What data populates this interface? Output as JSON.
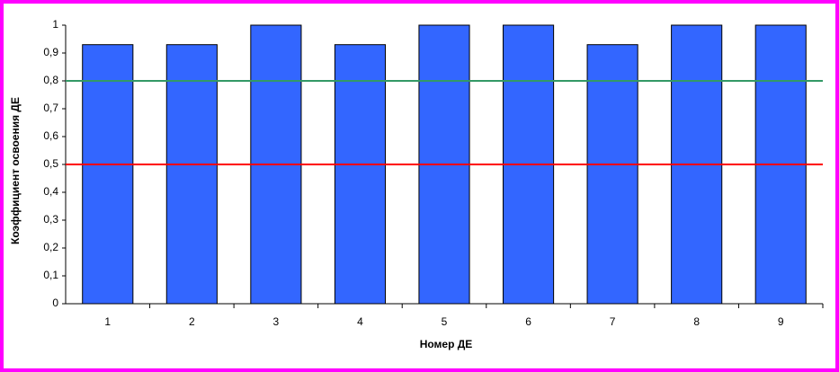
{
  "chart_data": {
    "type": "bar",
    "y_label": "Коэффициент освоения ДЕ",
    "x_label": "Номер ДЕ",
    "categories": [
      "1",
      "2",
      "3",
      "4",
      "5",
      "6",
      "7",
      "8",
      "9"
    ],
    "values": [
      0.93,
      0.93,
      1,
      0.93,
      1,
      1,
      0.93,
      1,
      1
    ],
    "color": "#3366ff",
    "ylim": [
      0,
      1
    ],
    "yticks": [
      0,
      {
        "value": 0.1,
        "label": "0,1"
      },
      {
        "value": 0.2,
        "label": "0,2"
      },
      {
        "value": 0.3,
        "label": "0,3"
      },
      {
        "value": 0.4,
        "label": "0,4"
      },
      {
        "value": 0.5,
        "label": "0,5"
      },
      {
        "value": 0.6,
        "label": "0,6"
      },
      {
        "value": 0.7,
        "label": "0,7"
      },
      {
        "value": 0.8,
        "label": "0,8"
      },
      {
        "value": 0.9,
        "label": "0,9"
      },
      1
    ],
    "reference_lines": [
      {
        "value": 0.8,
        "color": "#339966"
      },
      {
        "value": 0.5,
        "color": "#ff0000"
      }
    ]
  }
}
